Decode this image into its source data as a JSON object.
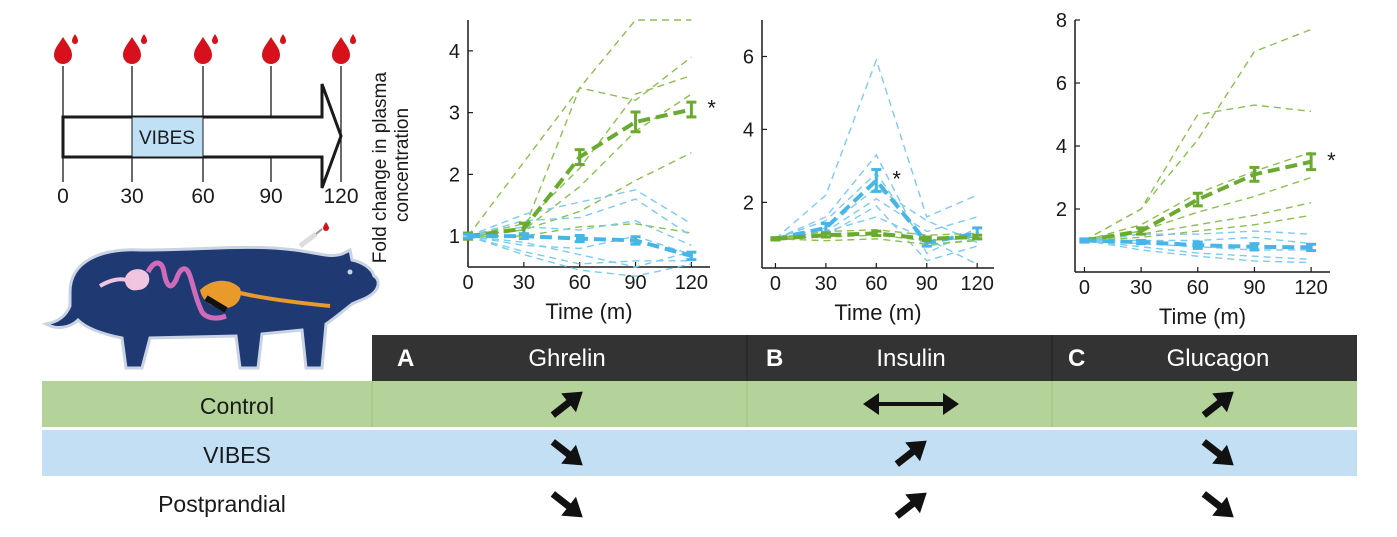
{
  "timeline": {
    "ticks": [
      "0",
      "30",
      "60",
      "90",
      "120"
    ],
    "stimulus_label": "VIBES",
    "colors": {
      "blood": "#d7111c",
      "box": "#bfe0f5"
    }
  },
  "summary_table": {
    "headers": [
      {
        "letter": "A",
        "name": "Ghrelin"
      },
      {
        "letter": "B",
        "name": "Insulin"
      },
      {
        "letter": "C",
        "name": "Glucagon"
      }
    ],
    "rows": [
      {
        "label": "Control",
        "color": "#b4d39a",
        "arrows": [
          "up",
          "both",
          "up"
        ]
      },
      {
        "label": "VIBES",
        "color": "#c2dff3",
        "arrows": [
          "down",
          "up",
          "down"
        ]
      },
      {
        "label": "Postprandial",
        "color": "#ffffff",
        "arrows": [
          "down",
          "up",
          "down"
        ]
      }
    ],
    "header_color": "#333333"
  },
  "chart_data": [
    {
      "type": "line",
      "panel": "A",
      "xlabel": "Time (m)",
      "ylabel": "Fold change in plasma concentration",
      "x": [
        0,
        30,
        60,
        90,
        120
      ],
      "xlim": [
        0,
        130
      ],
      "ylim": [
        0.5,
        4.5
      ],
      "yticks": [
        1,
        2,
        3,
        4
      ],
      "xticks": [
        0,
        30,
        60,
        90,
        120
      ],
      "significance": "*",
      "mean_series": [
        {
          "group": "green",
          "values": [
            1.0,
            1.12,
            2.28,
            2.85,
            3.05
          ],
          "err": [
            0.05,
            0.09,
            0.12,
            0.16,
            0.12
          ]
        },
        {
          "group": "blue",
          "values": [
            1.0,
            1.0,
            0.96,
            0.93,
            0.68
          ],
          "err": [
            0.03,
            0.04,
            0.05,
            0.06,
            0.06
          ]
        }
      ],
      "individual_series": [
        {
          "group": "green",
          "values": [
            1.0,
            2.2,
            3.4,
            4.5,
            4.5
          ]
        },
        {
          "group": "green",
          "values": [
            1.0,
            1.1,
            3.4,
            3.2,
            3.9
          ]
        },
        {
          "group": "green",
          "values": [
            1.0,
            1.2,
            2.1,
            3.3,
            3.6
          ]
        },
        {
          "group": "green",
          "values": [
            1.0,
            1.1,
            1.8,
            2.7,
            3.3
          ]
        },
        {
          "group": "green",
          "values": [
            1.0,
            1.1,
            1.4,
            1.9,
            2.35
          ]
        },
        {
          "group": "green",
          "values": [
            1.0,
            1.0,
            1.15,
            1.2,
            1.05
          ]
        },
        {
          "group": "blue",
          "values": [
            1.0,
            1.35,
            1.55,
            1.75,
            1.2
          ]
        },
        {
          "group": "blue",
          "values": [
            1.0,
            1.25,
            1.3,
            1.6,
            1.0
          ]
        },
        {
          "group": "blue",
          "values": [
            1.0,
            1.15,
            1.1,
            1.25,
            0.85
          ]
        },
        {
          "group": "blue",
          "values": [
            1.0,
            0.85,
            0.8,
            1.0,
            0.7
          ]
        },
        {
          "group": "blue",
          "values": [
            1.0,
            0.75,
            0.55,
            0.6,
            0.6
          ]
        },
        {
          "group": "blue",
          "values": [
            1.0,
            0.7,
            0.45,
            0.35,
            0.55
          ]
        },
        {
          "group": "blue",
          "values": [
            1.0,
            0.9,
            0.7,
            0.5,
            0.75
          ]
        }
      ]
    },
    {
      "type": "line",
      "panel": "B",
      "xlabel": "Time (m)",
      "x": [
        0,
        30,
        60,
        90,
        120
      ],
      "xlim": [
        -8,
        130
      ],
      "ylim": [
        0.2,
        7.0
      ],
      "yticks": [
        2,
        4,
        6
      ],
      "xticks": [
        0,
        30,
        60,
        90,
        120
      ],
      "significance": "*",
      "mean_series": [
        {
          "group": "blue",
          "values": [
            1.0,
            1.3,
            2.6,
            0.9,
            1.15
          ],
          "err": [
            0.03,
            0.12,
            0.3,
            0.1,
            0.15
          ]
        },
        {
          "group": "green",
          "values": [
            1.0,
            1.1,
            1.15,
            1.0,
            1.05
          ],
          "err": [
            0.03,
            0.05,
            0.06,
            0.05,
            0.05
          ]
        }
      ],
      "individual_series": [
        {
          "group": "blue",
          "values": [
            1.0,
            2.2,
            5.9,
            1.6,
            2.2
          ]
        },
        {
          "group": "blue",
          "values": [
            1.0,
            1.6,
            3.3,
            0.6,
            1.3
          ]
        },
        {
          "group": "blue",
          "values": [
            1.0,
            1.5,
            2.8,
            0.8,
            1.0
          ]
        },
        {
          "group": "blue",
          "values": [
            1.0,
            1.3,
            2.4,
            1.5,
            0.9
          ]
        },
        {
          "group": "blue",
          "values": [
            1.0,
            1.2,
            2.1,
            1.2,
            1.6
          ]
        },
        {
          "group": "blue",
          "values": [
            1.0,
            1.1,
            1.9,
            0.4,
            0.8
          ]
        },
        {
          "group": "blue",
          "values": [
            1.0,
            1.2,
            1.6,
            1.0,
            0.3
          ]
        },
        {
          "group": "green",
          "values": [
            1.0,
            1.2,
            1.25,
            1.1,
            1.15
          ]
        },
        {
          "group": "green",
          "values": [
            1.0,
            1.05,
            1.1,
            0.95,
            1.05
          ]
        },
        {
          "group": "green",
          "values": [
            1.0,
            0.95,
            1.0,
            0.85,
            0.95
          ]
        }
      ]
    },
    {
      "type": "line",
      "panel": "C",
      "xlabel": "Time (m)",
      "x": [
        0,
        30,
        60,
        90,
        120
      ],
      "xlim": [
        -5,
        130
      ],
      "ylim": [
        0,
        8
      ],
      "yticks": [
        2,
        4,
        6,
        8
      ],
      "xticks": [
        0,
        30,
        60,
        90,
        120
      ],
      "significance": "*",
      "mean_series": [
        {
          "group": "green",
          "values": [
            1.0,
            1.3,
            2.3,
            3.1,
            3.5
          ],
          "err": [
            0.05,
            0.1,
            0.2,
            0.22,
            0.25
          ]
        },
        {
          "group": "blue",
          "values": [
            1.0,
            0.95,
            0.85,
            0.8,
            0.78
          ],
          "err": [
            0.04,
            0.05,
            0.1,
            0.1,
            0.1
          ]
        }
      ],
      "individual_series": [
        {
          "group": "green",
          "values": [
            1.0,
            2.0,
            4.2,
            7.0,
            7.7
          ]
        },
        {
          "group": "green",
          "values": [
            1.0,
            2.0,
            5.0,
            5.3,
            5.1
          ]
        },
        {
          "group": "green",
          "values": [
            1.0,
            1.5,
            2.5,
            3.2,
            3.8
          ]
        },
        {
          "group": "green",
          "values": [
            1.0,
            1.3,
            1.9,
            2.4,
            3.0
          ]
        },
        {
          "group": "green",
          "values": [
            1.0,
            1.2,
            1.5,
            1.8,
            2.2
          ]
        },
        {
          "group": "green",
          "values": [
            1.0,
            1.1,
            1.3,
            1.5,
            1.8
          ]
        },
        {
          "group": "blue",
          "values": [
            1.0,
            1.2,
            1.2,
            1.3,
            1.2
          ]
        },
        {
          "group": "blue",
          "values": [
            1.0,
            1.0,
            1.0,
            1.1,
            0.9
          ]
        },
        {
          "group": "blue",
          "values": [
            1.0,
            0.9,
            0.8,
            0.7,
            0.7
          ]
        },
        {
          "group": "blue",
          "values": [
            1.0,
            0.8,
            0.6,
            0.5,
            0.4
          ]
        },
        {
          "group": "blue",
          "values": [
            1.0,
            0.7,
            0.5,
            0.35,
            0.3
          ]
        }
      ]
    }
  ],
  "colors": {
    "green": "#6aab2f",
    "green_light": "#8cbf50",
    "blue": "#47b6e6",
    "blue_light": "#7ccbee",
    "pig_body": "#1f3a73",
    "pig_outline": "#c9d3e3",
    "stomach": "#e89a2a",
    "intestine": "#cf6bb8",
    "colon": "#f1c5e0"
  }
}
